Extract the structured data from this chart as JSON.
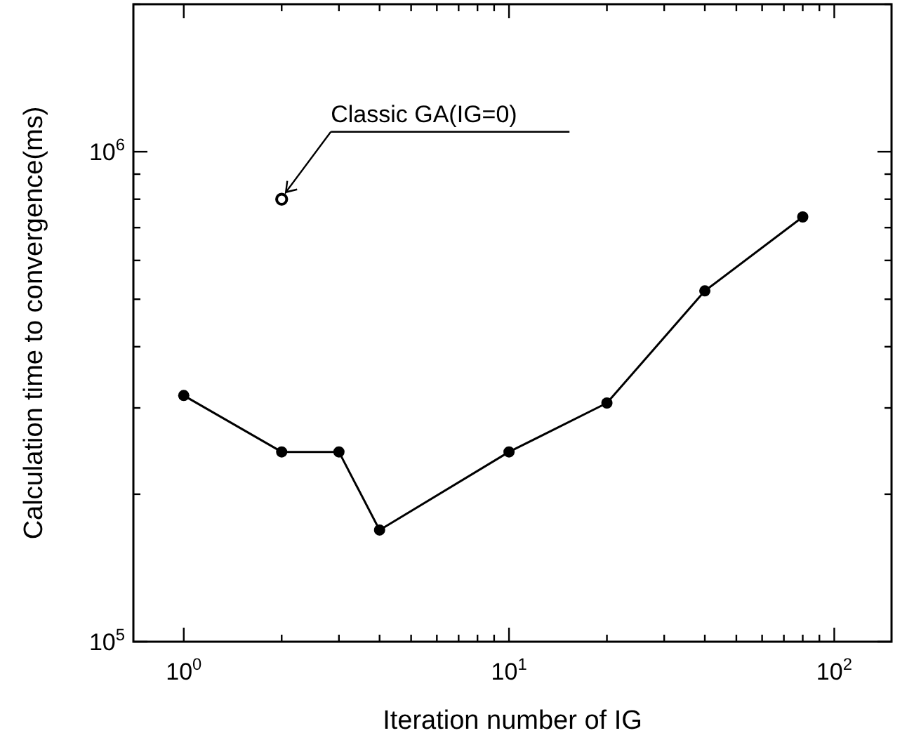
{
  "chart_data": {
    "type": "line",
    "xlabel": "Iteration number of IG",
    "ylabel": "Calculation time to convergence(ms)",
    "log": "xy",
    "xlim": [
      0.7,
      150
    ],
    "ylim": [
      100000,
      2000000
    ],
    "xticks": [
      {
        "value": 1,
        "label": "10$^{0}$"
      },
      {
        "value": 2,
        "label": null
      },
      {
        "value": 3,
        "label": null
      },
      {
        "value": 4,
        "label": null
      },
      {
        "value": 5,
        "label": null
      },
      {
        "value": 6,
        "label": null
      },
      {
        "value": 7,
        "label": null
      },
      {
        "value": 8,
        "label": null
      },
      {
        "value": 9,
        "label": null
      },
      {
        "value": 10,
        "label": "10$^{1}$"
      },
      {
        "value": 20,
        "label": null
      },
      {
        "value": 30,
        "label": null
      },
      {
        "value": 40,
        "label": null
      },
      {
        "value": 50,
        "label": null
      },
      {
        "value": 60,
        "label": null
      },
      {
        "value": 70,
        "label": null
      },
      {
        "value": 80,
        "label": null
      },
      {
        "value": 90,
        "label": null
      },
      {
        "value": 100,
        "label": "10$^{2}$"
      }
    ],
    "yticks": [
      {
        "value": 100000,
        "label": "10$^{5}$"
      },
      {
        "value": 200000,
        "label": null
      },
      {
        "value": 300000,
        "label": null
      },
      {
        "value": 400000,
        "label": null
      },
      {
        "value": 500000,
        "label": null
      },
      {
        "value": 600000,
        "label": null
      },
      {
        "value": 700000,
        "label": null
      },
      {
        "value": 800000,
        "label": null
      },
      {
        "value": 900000,
        "label": null
      },
      {
        "value": 1000000,
        "label": "10$^{6}$"
      },
      {
        "value": 2000000,
        "label": null
      }
    ],
    "grid": false,
    "marker": "circle",
    "line_style": "solid",
    "series": [
      {
        "color": "#000000",
        "x": [
          1,
          2,
          3,
          4,
          10,
          20,
          40,
          80
        ],
        "values": [
          318000,
          244000,
          244000,
          169000,
          244000,
          307000,
          520000,
          736000
        ]
      },
      {
        "type": "scatter",
        "color": "#000000",
        "x": [
          2
        ],
        "values": [
          800000
        ]
      }
    ],
    "annotations": [
      "Classic GA(IG=0)"
    ]
  }
}
